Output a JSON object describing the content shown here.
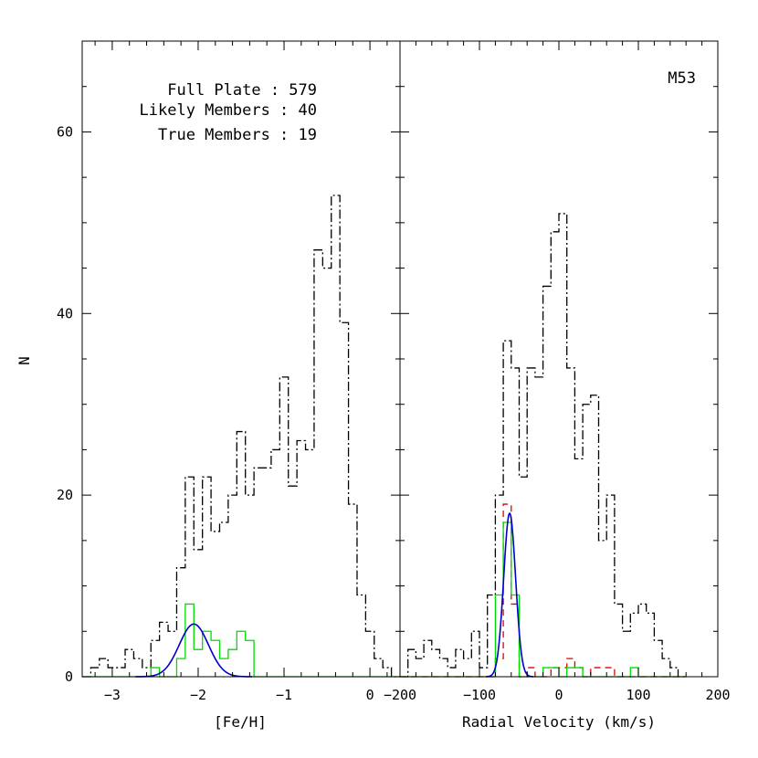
{
  "chart_data": [
    {
      "type": "bar",
      "panel": "left",
      "xlabel": "[Fe/H]",
      "ylabel": "N",
      "xlim": [
        -3.35,
        0.35
      ],
      "ylim": [
        0,
        70
      ],
      "x_ticks": [
        -3,
        -2,
        -1,
        0
      ],
      "x_tick_labels": [
        "−3",
        "−2",
        "−1",
        "0"
      ],
      "y_ticks": [
        0,
        20,
        40,
        60
      ],
      "y_tick_labels": [
        "0",
        "20",
        "40",
        "60"
      ],
      "annotations": [
        "Full Plate : 579",
        "Likely Members : 40",
        "True Members : 19"
      ],
      "bin_edges_start": -3.35,
      "bin_width": 0.1,
      "series": [
        {
          "style": "dash-dot",
          "color": "#000000",
          "values": [
            0,
            1,
            2,
            1,
            1,
            3,
            2,
            1,
            4,
            6,
            5,
            12,
            22,
            14,
            22,
            16,
            17,
            20,
            27,
            20,
            23,
            23,
            25,
            33,
            21,
            26,
            25,
            47,
            45,
            53,
            39,
            19,
            9,
            5,
            2,
            1,
            0
          ]
        },
        {
          "style": "dashed",
          "color": "#e00000",
          "values": [
            0,
            0,
            0,
            0,
            0,
            0,
            0,
            0,
            0,
            0,
            0,
            0,
            0,
            0,
            0,
            0,
            0,
            0,
            0,
            0,
            0,
            0,
            0,
            0,
            0,
            0,
            0,
            0,
            0,
            0,
            0,
            0,
            0,
            0,
            0,
            0,
            0
          ]
        },
        {
          "style": "solid",
          "color": "#00dd00",
          "values": [
            0,
            0,
            0,
            0,
            0,
            0,
            0,
            0,
            1,
            0,
            0,
            2,
            8,
            3,
            5,
            4,
            2,
            3,
            5,
            4,
            0,
            0,
            0,
            0,
            0,
            0,
            0,
            0,
            0,
            0,
            0,
            0,
            0,
            0,
            0,
            0,
            0
          ]
        }
      ],
      "fit": {
        "color": "#0000cc",
        "center": -2.05,
        "sigma": 0.17,
        "amplitude": 5.8
      }
    },
    {
      "type": "bar",
      "panel": "right",
      "xlabel": "Radial Velocity (km/s)",
      "text": "M53",
      "xlim": [
        -200,
        200
      ],
      "ylim": [
        0,
        70
      ],
      "x_ticks": [
        -200,
        -100,
        0,
        100,
        200
      ],
      "x_tick_labels": [
        "−200",
        "−100",
        "0",
        "100",
        "200"
      ],
      "bin_edges_start": -200,
      "bin_width": 10,
      "series": [
        {
          "style": "dash-dot",
          "color": "#000000",
          "values": [
            0,
            3,
            2,
            4,
            3,
            2,
            1,
            3,
            2,
            5,
            1,
            9,
            20,
            37,
            34,
            22,
            34,
            33,
            43,
            49,
            51,
            34,
            24,
            30,
            31,
            15,
            20,
            8,
            5,
            7,
            8,
            7,
            4,
            2,
            1,
            0
          ]
        },
        {
          "style": "dashed",
          "color": "#e00000",
          "values": [
            0,
            0,
            0,
            0,
            0,
            0,
            0,
            0,
            0,
            0,
            0,
            0,
            2,
            19,
            8,
            0,
            1,
            0,
            0,
            1,
            1,
            2,
            1,
            0,
            1,
            1,
            1,
            0,
            0,
            0,
            0,
            0,
            0,
            0,
            0,
            0
          ]
        },
        {
          "style": "solid",
          "color": "#00dd00",
          "values": [
            0,
            0,
            0,
            0,
            0,
            0,
            0,
            0,
            0,
            0,
            0,
            0,
            9,
            17,
            9,
            0,
            0,
            0,
            1,
            1,
            0,
            1,
            1,
            0,
            0,
            0,
            0,
            0,
            0,
            1,
            0,
            0,
            0,
            0,
            0,
            0
          ]
        }
      ],
      "fit": {
        "color": "#0000cc",
        "center": -62,
        "sigma": 7.5,
        "amplitude": 18
      }
    }
  ]
}
